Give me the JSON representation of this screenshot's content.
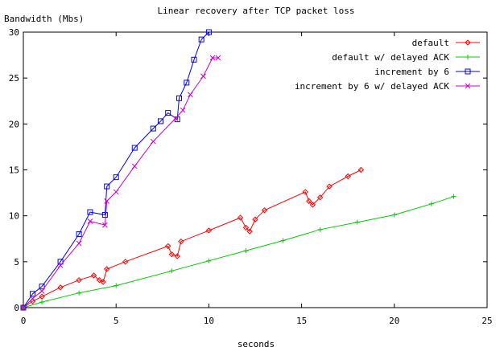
{
  "chart_data": {
    "type": "line",
    "title": "Linear recovery after TCP packet loss",
    "xlabel": "seconds",
    "ylabel": "Bandwidth (Mbs)",
    "xlim": [
      0,
      25
    ],
    "ylim": [
      0,
      30
    ],
    "xticks": [
      0,
      5,
      10,
      15,
      20,
      25
    ],
    "yticks": [
      0,
      5,
      10,
      15,
      20,
      25,
      30
    ],
    "xtick_labels": [
      "0",
      "5",
      "10",
      "15",
      "20",
      "25"
    ],
    "ytick_labels": [
      "0",
      "5",
      "10",
      "15",
      "20",
      "25",
      "30"
    ],
    "grid": false,
    "legend_position": "top-right",
    "series": [
      {
        "name": "default",
        "color": "#ff0000",
        "marker": "diamond",
        "points": [
          [
            0,
            0
          ],
          [
            0.5,
            0.7
          ],
          [
            1,
            1.2
          ],
          [
            2,
            2.2
          ],
          [
            3,
            3.0
          ],
          [
            3.8,
            3.5
          ],
          [
            4.1,
            3.0
          ],
          [
            4.3,
            2.8
          ],
          [
            4.5,
            4.2
          ],
          [
            5.5,
            5.0
          ],
          [
            7.8,
            6.7
          ],
          [
            8.0,
            5.8
          ],
          [
            8.3,
            5.6
          ],
          [
            8.5,
            7.2
          ],
          [
            10,
            8.4
          ],
          [
            11.7,
            9.8
          ],
          [
            12.0,
            8.7
          ],
          [
            12.2,
            8.3
          ],
          [
            12.5,
            9.6
          ],
          [
            13,
            10.6
          ],
          [
            15.2,
            12.6
          ],
          [
            15.4,
            11.6
          ],
          [
            15.6,
            11.2
          ],
          [
            16,
            12.0
          ],
          [
            16.5,
            13.2
          ],
          [
            17.5,
            14.3
          ],
          [
            18.2,
            15.0
          ]
        ]
      },
      {
        "name": "default w/ delayed ACK",
        "color": "#00cc00",
        "marker": "plus",
        "points": [
          [
            0,
            0
          ],
          [
            1,
            0.6
          ],
          [
            3,
            1.6
          ],
          [
            5,
            2.4
          ],
          [
            8,
            4.0
          ],
          [
            10,
            5.1
          ],
          [
            12,
            6.2
          ],
          [
            14,
            7.3
          ],
          [
            16,
            8.5
          ],
          [
            18,
            9.3
          ],
          [
            20,
            10.1
          ],
          [
            22,
            11.3
          ],
          [
            23.2,
            12.1
          ]
        ]
      },
      {
        "name": "increment by 6",
        "color": "#0000ff",
        "marker": "square",
        "points": [
          [
            0,
            0
          ],
          [
            0.5,
            1.5
          ],
          [
            1,
            2.3
          ],
          [
            2,
            5.0
          ],
          [
            3,
            8.0
          ],
          [
            3.6,
            10.4
          ],
          [
            4.4,
            10.1
          ],
          [
            4.5,
            13.2
          ],
          [
            5,
            14.2
          ],
          [
            6,
            17.4
          ],
          [
            7,
            19.5
          ],
          [
            7.4,
            20.3
          ],
          [
            7.8,
            21.2
          ],
          [
            8.3,
            20.5
          ],
          [
            8.4,
            22.8
          ],
          [
            8.8,
            24.5
          ],
          [
            9.2,
            27.0
          ],
          [
            9.6,
            29.2
          ],
          [
            10,
            30.0
          ]
        ]
      },
      {
        "name": "increment by 6 w/ delayed ACK",
        "color": "#cc00cc",
        "marker": "cross",
        "points": [
          [
            0,
            0
          ],
          [
            0.5,
            1.0
          ],
          [
            1,
            1.8
          ],
          [
            2,
            4.6
          ],
          [
            3,
            7.0
          ],
          [
            3.6,
            9.4
          ],
          [
            4.4,
            9.0
          ],
          [
            4.5,
            11.6
          ],
          [
            5,
            12.6
          ],
          [
            6,
            15.4
          ],
          [
            7,
            18.1
          ],
          [
            8.2,
            20.6
          ],
          [
            8.6,
            21.5
          ],
          [
            9,
            23.2
          ],
          [
            9.7,
            25.2
          ],
          [
            10.2,
            27.2
          ],
          [
            10.5,
            27.2
          ]
        ]
      }
    ]
  }
}
